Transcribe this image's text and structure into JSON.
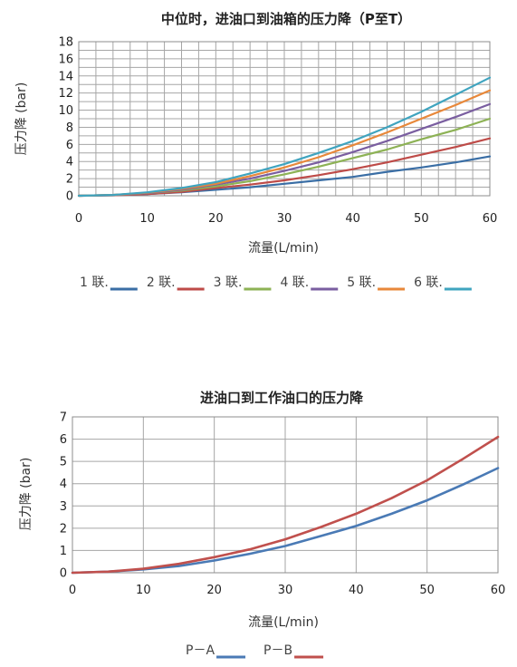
{
  "chart_data": [
    {
      "type": "line",
      "title": "中位时，进油口到油箱的压力降（P至T）",
      "xlabel": "流量(L/min)",
      "ylabel": "压力降 (bar)",
      "xlim": [
        0,
        60
      ],
      "ylim": [
        0,
        18
      ],
      "x_ticks": [
        "0",
        "10",
        "20",
        "30",
        "40",
        "50",
        "60"
      ],
      "y_ticks": [
        "0",
        "2",
        "4",
        "6",
        "8",
        "10",
        "12",
        "14",
        "16",
        "18"
      ],
      "grid": true,
      "legend_position": "bottom",
      "x": [
        0,
        5,
        10,
        15,
        20,
        25,
        30,
        35,
        40,
        45,
        50,
        55,
        60
      ],
      "series": [
        {
          "name": "1 联.",
          "color": "#3a6ea5",
          "values": [
            0,
            0.05,
            0.2,
            0.4,
            0.7,
            1.0,
            1.4,
            1.8,
            2.2,
            2.8,
            3.3,
            3.9,
            4.6
          ]
        },
        {
          "name": "2 联.",
          "color": "#be4b48",
          "values": [
            0,
            0.05,
            0.2,
            0.45,
            0.9,
            1.3,
            1.8,
            2.4,
            3.1,
            3.9,
            4.8,
            5.7,
            6.7
          ]
        },
        {
          "name": "3 联.",
          "color": "#8db255",
          "values": [
            0,
            0.1,
            0.3,
            0.6,
            1.1,
            1.7,
            2.5,
            3.4,
            4.4,
            5.4,
            6.6,
            7.7,
            9.0
          ]
        },
        {
          "name": "4 联.",
          "color": "#7a5ea0",
          "values": [
            0,
            0.1,
            0.3,
            0.7,
            1.3,
            2.0,
            2.9,
            3.9,
            5.1,
            6.4,
            7.8,
            9.2,
            10.7
          ]
        },
        {
          "name": "5 联.",
          "color": "#e8883a",
          "values": [
            0,
            0.1,
            0.35,
            0.8,
            1.4,
            2.3,
            3.3,
            4.5,
            5.9,
            7.4,
            9.0,
            10.6,
            12.3
          ]
        },
        {
          "name": "6 联.",
          "color": "#3fa4bf",
          "values": [
            0,
            0.1,
            0.4,
            0.9,
            1.6,
            2.6,
            3.7,
            5.0,
            6.4,
            8.0,
            9.8,
            11.8,
            13.8
          ]
        }
      ]
    },
    {
      "type": "line",
      "title": "进油口到工作油口的压力降",
      "xlabel": "流量(L/min)",
      "ylabel": "压力降 (bar)",
      "xlim": [
        0,
        60
      ],
      "ylim": [
        0,
        7
      ],
      "x_ticks": [
        "0",
        "10",
        "20",
        "30",
        "40",
        "50",
        "60"
      ],
      "y_ticks": [
        "0",
        "1",
        "2",
        "3",
        "4",
        "5",
        "6",
        "7"
      ],
      "grid": true,
      "legend_position": "bottom",
      "x": [
        0,
        5,
        10,
        15,
        20,
        25,
        30,
        35,
        40,
        45,
        50,
        55,
        60
      ],
      "series": [
        {
          "name": "P－A",
          "color": "#4a7ab5",
          "values": [
            0,
            0.05,
            0.15,
            0.3,
            0.55,
            0.85,
            1.2,
            1.65,
            2.1,
            2.65,
            3.25,
            3.95,
            4.7
          ]
        },
        {
          "name": "P－B",
          "color": "#c0504d",
          "values": [
            0,
            0.05,
            0.18,
            0.4,
            0.7,
            1.05,
            1.5,
            2.05,
            2.65,
            3.35,
            4.15,
            5.1,
            6.1
          ]
        }
      ]
    }
  ]
}
